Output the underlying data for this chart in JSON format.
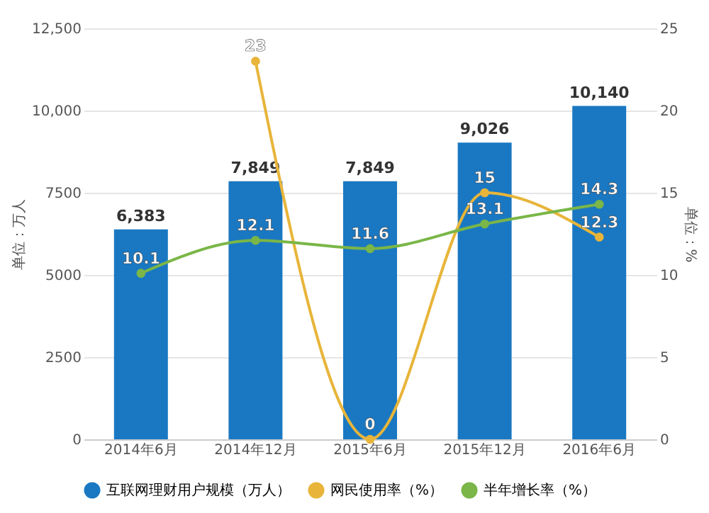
{
  "chart_data": {
    "type": "bar",
    "categories": [
      "2014年6月",
      "2014年12月",
      "2015年6月",
      "2015年12月",
      "2016年6月"
    ],
    "series": [
      {
        "name": "互联网理财用户规模（万人）",
        "color": "#1a78c2",
        "values": [
          6383,
          7849,
          7849,
          9026,
          10140
        ],
        "value_labels": [
          "6,383",
          "7,849",
          "7,849",
          "9,026",
          "10,140"
        ]
      },
      {
        "name": "网民使用率（%）",
        "type": "line",
        "axis": "y2",
        "color": "#e8b53a",
        "values": [
          null,
          23,
          0,
          15,
          12.3
        ]
      },
      {
        "name": "半年增长率（%）",
        "type": "line",
        "axis": "y2",
        "color": "#7ab648",
        "values": [
          10.1,
          12.1,
          11.6,
          13.1,
          14.3
        ]
      }
    ],
    "ylabel": "单位：万人",
    "y2label": "单位：%",
    "ylim": [
      0,
      12500
    ],
    "yticks": [
      0,
      2500,
      5000,
      7500,
      {
        "value": 10000,
        "label": "10,000"
      },
      {
        "value": 12500,
        "label": "12,500"
      }
    ],
    "y2lim": [
      0,
      25
    ],
    "y2ticks": [
      0,
      5,
      10,
      15,
      20,
      25
    ],
    "grid": "y",
    "legend": "bottom",
    "marker": "circle",
    "data_labels": true
  }
}
